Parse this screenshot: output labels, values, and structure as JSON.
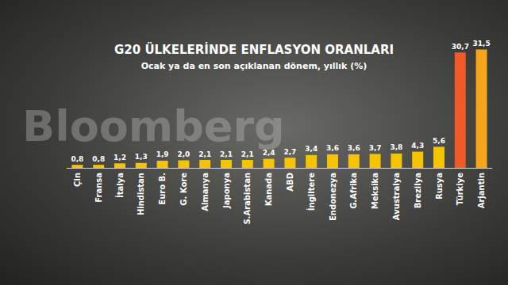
{
  "chart_data": {
    "type": "bar",
    "title": "G20 ÜLKELERİNDE ENFLASYON ORANLARI",
    "subtitle": "Ocak ya da en son açıklanan dönem, yıllık (%)",
    "annotations": [
      "Bloomberg"
    ],
    "categories": [
      "Çin",
      "Fransa",
      "İtalya",
      "Hindistan",
      "Euro B.",
      "G. Kore",
      "Almanya",
      "Japonya",
      "S.Arabistan",
      "Kanada",
      "ABD",
      "İngiltere",
      "Endonezya",
      "G.Afrika",
      "Meksika",
      "Avustralya",
      "Brezilya",
      "Rusya",
      "Türkiye",
      "Arjantin"
    ],
    "values": [
      0.8,
      0.8,
      1.2,
      1.3,
      1.9,
      2.0,
      2.1,
      2.1,
      2.1,
      2.4,
      2.7,
      3.4,
      3.6,
      3.6,
      3.7,
      3.8,
      4.3,
      5.6,
      30.7,
      31.5
    ],
    "value_labels": [
      "0,8",
      "0,8",
      "1,2",
      "1,3",
      "1,9",
      "2,0",
      "2,1",
      "2,1",
      "2,1",
      "2,4",
      "2,7",
      "3,4",
      "3,6",
      "3,6",
      "3,7",
      "3,8",
      "4,3",
      "5,6",
      "30,7",
      "31,5"
    ],
    "colors": [
      "#f5c400",
      "#f5c400",
      "#f5c400",
      "#f5c400",
      "#f5c400",
      "#f5c400",
      "#f5c400",
      "#f5c400",
      "#f5c400",
      "#f5c400",
      "#f5c400",
      "#f5c400",
      "#f5c400",
      "#f5c400",
      "#f5c400",
      "#f5c400",
      "#f5c400",
      "#f5c400",
      "#f05a28",
      "#f7a51c"
    ],
    "ylim": [
      0,
      32
    ],
    "grid": false,
    "data_labels": true,
    "tick_labels": "x"
  }
}
